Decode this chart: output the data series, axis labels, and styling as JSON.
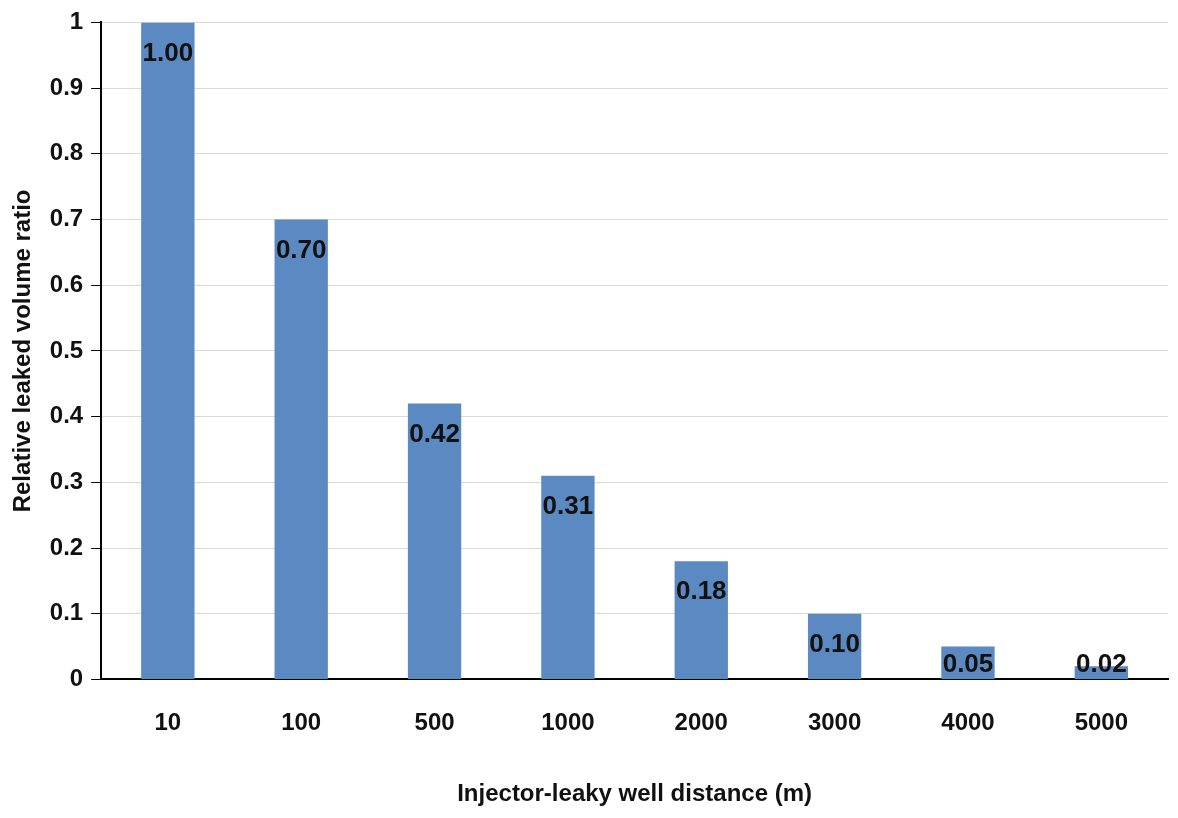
{
  "chart_data": {
    "type": "bar",
    "xlabel": "Injector-leaky well distance (m)",
    "ylabel": "Relative leaked volume ratio",
    "categories": [
      "10",
      "100",
      "500",
      "1000",
      "2000",
      "3000",
      "4000",
      "5000"
    ],
    "values": [
      1.0,
      0.7,
      0.42,
      0.31,
      0.18,
      0.1,
      0.05,
      0.02
    ],
    "value_labels": [
      "1.00",
      "0.70",
      "0.42",
      "0.31",
      "0.18",
      "0.10",
      "0.05",
      "0.02"
    ],
    "color": "#5b89c2",
    "ylim": [
      0,
      1
    ],
    "yticks": [
      0,
      0.1,
      0.2,
      0.3,
      0.4,
      0.5,
      0.6,
      0.7,
      0.8,
      0.9,
      1
    ],
    "grid": "y",
    "legend": false
  }
}
